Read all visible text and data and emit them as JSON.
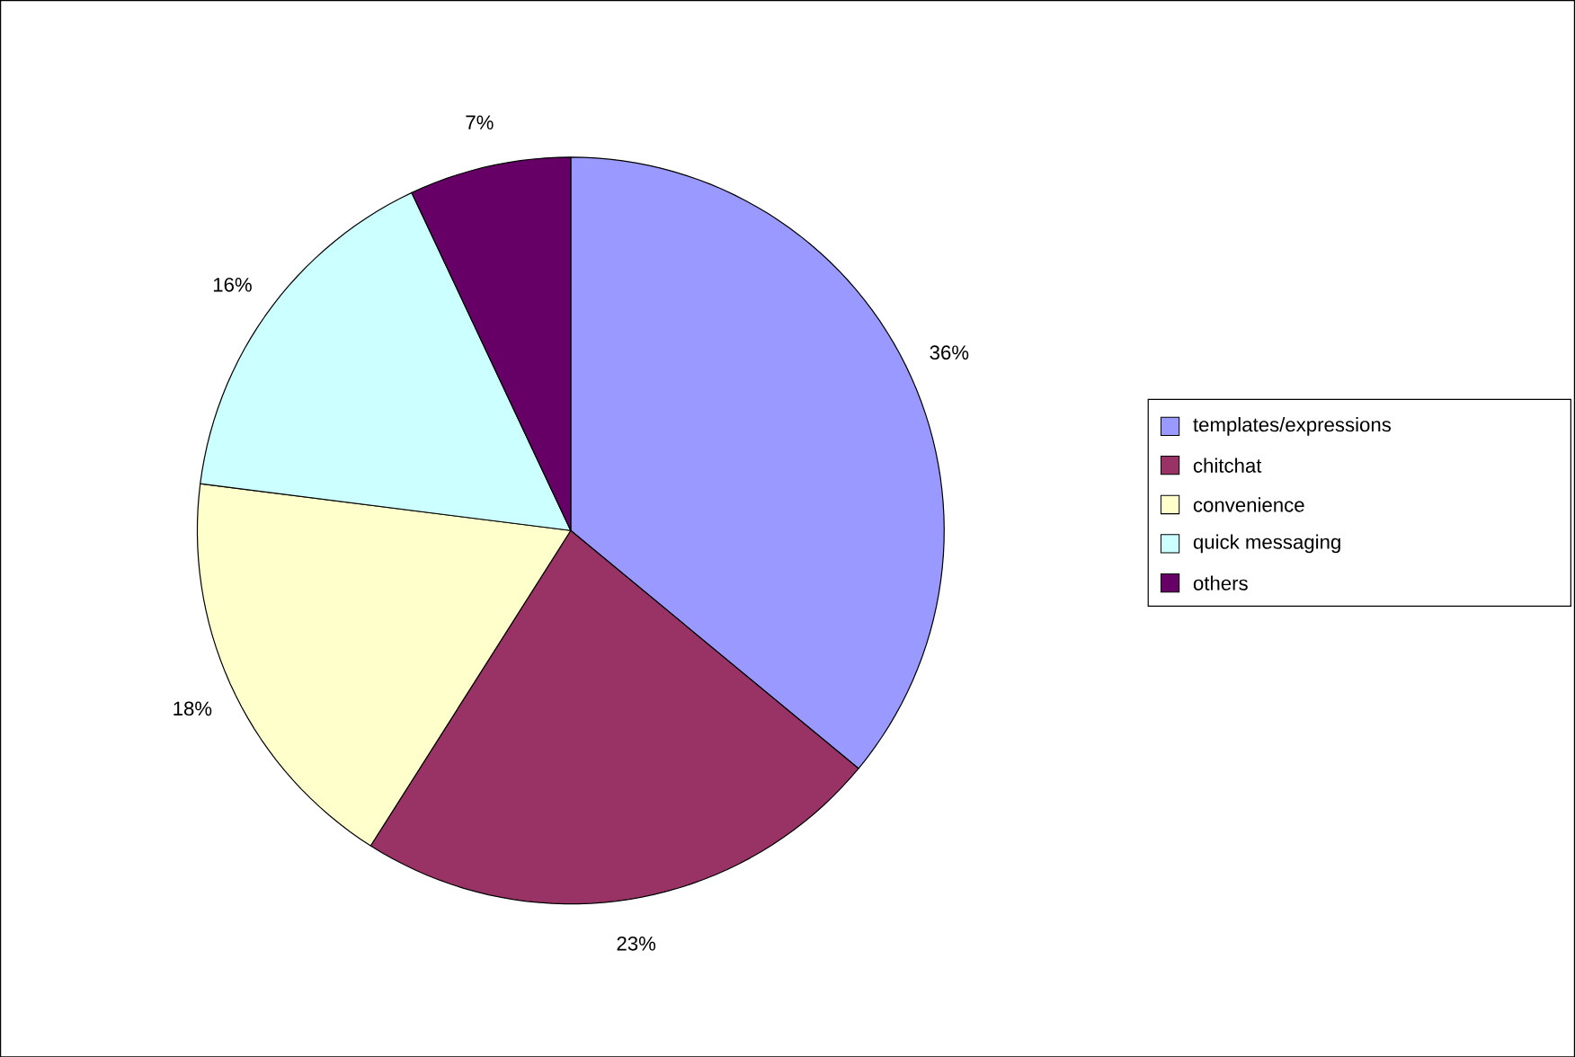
{
  "chart_data": {
    "type": "pie",
    "categories": [
      "templates/expressions",
      "chitchat",
      "convenience",
      "quick messaging",
      "others"
    ],
    "values": [
      36,
      23,
      18,
      16,
      7
    ],
    "colors": [
      "#9999ff",
      "#993366",
      "#ffffcc",
      "#ccffff",
      "#660066"
    ],
    "value_labels": [
      "36%",
      "23%",
      "18%",
      "16%",
      "7%"
    ],
    "legend": "right"
  }
}
